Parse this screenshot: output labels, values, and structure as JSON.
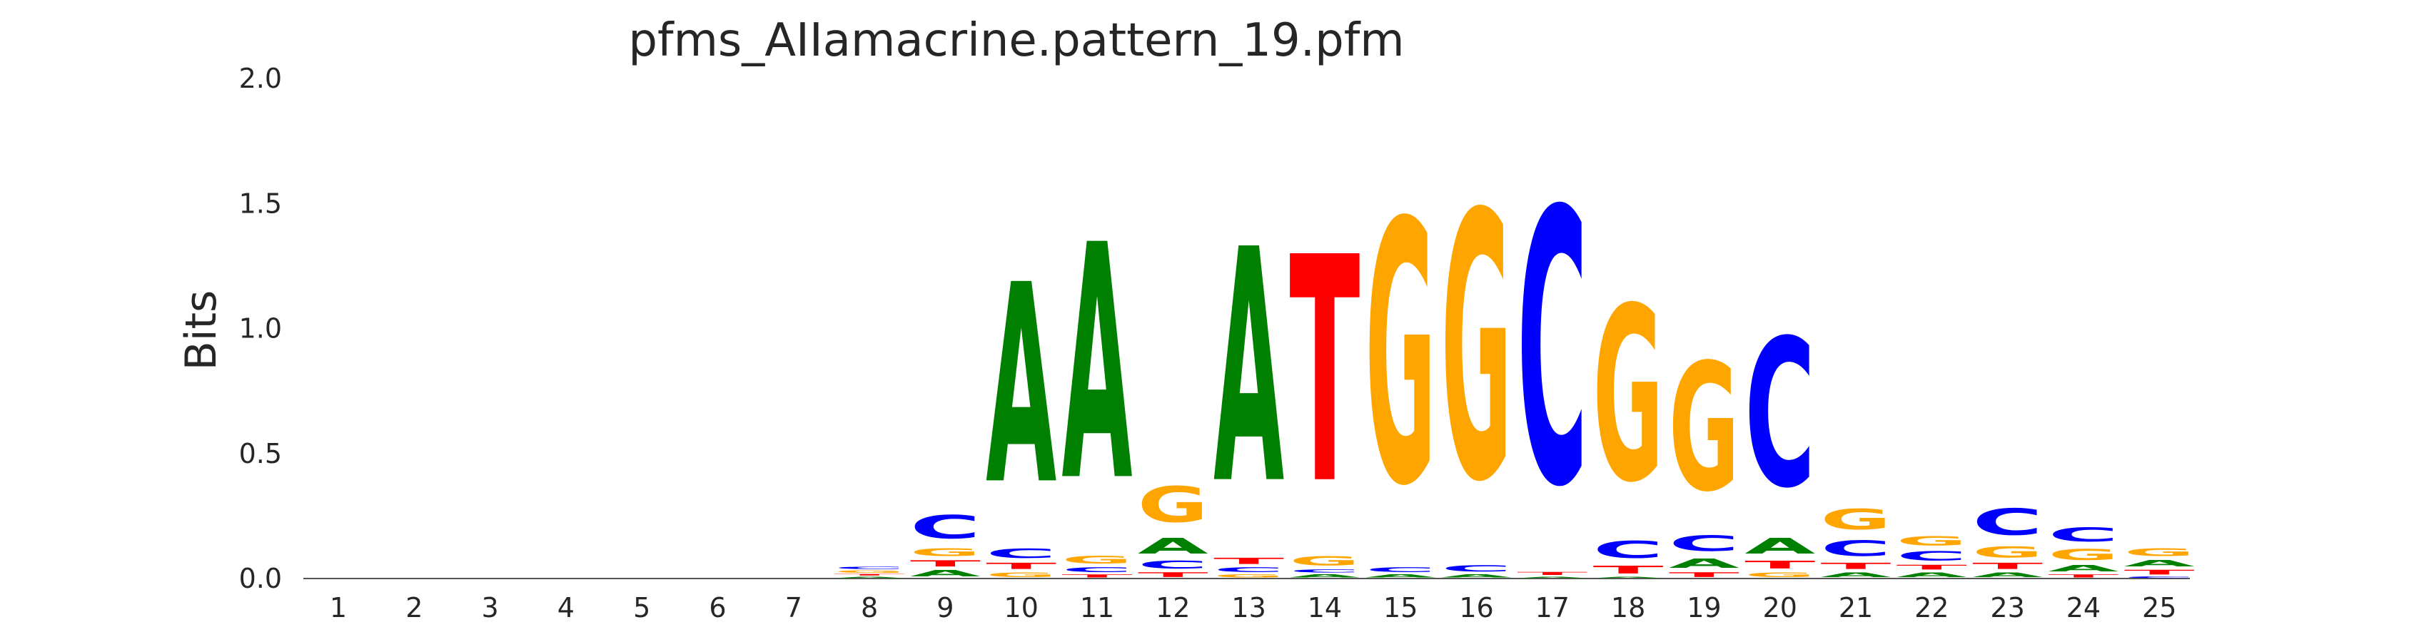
{
  "chart_data": {
    "type": "sequence-logo",
    "title": "pfms_AIIamacrine.pattern_19.pfm",
    "ylabel": "Bits",
    "xlabel": "",
    "ylim": [
      0,
      2.0
    ],
    "yticks": [
      "0.0",
      "0.5",
      "1.0",
      "1.5",
      "2.0"
    ],
    "colors": {
      "A": "#008000",
      "C": "#0000ff",
      "G": "#ffa500",
      "T": "#ff0000"
    },
    "positions": [
      {
        "pos": "1",
        "letters": []
      },
      {
        "pos": "2",
        "letters": []
      },
      {
        "pos": "3",
        "letters": []
      },
      {
        "pos": "4",
        "letters": []
      },
      {
        "pos": "5",
        "letters": []
      },
      {
        "pos": "6",
        "letters": []
      },
      {
        "pos": "7",
        "letters": []
      },
      {
        "pos": "8",
        "letters": [
          {
            "base": "A",
            "height": 0.01
          },
          {
            "base": "T",
            "height": 0.01
          },
          {
            "base": "G",
            "height": 0.015
          },
          {
            "base": "C",
            "height": 0.015
          }
        ]
      },
      {
        "pos": "9",
        "letters": [
          {
            "base": "A",
            "height": 0.04
          },
          {
            "base": "T",
            "height": 0.04
          },
          {
            "base": "G",
            "height": 0.05
          },
          {
            "base": "C",
            "height": 0.15
          }
        ]
      },
      {
        "pos": "10",
        "letters": [
          {
            "base": "G",
            "height": 0.03
          },
          {
            "base": "T",
            "height": 0.04
          },
          {
            "base": "C",
            "height": 0.06
          },
          {
            "base": "A",
            "height": 1.28
          }
        ]
      },
      {
        "pos": "11",
        "letters": [
          {
            "base": "T",
            "height": 0.02
          },
          {
            "base": "C",
            "height": 0.03
          },
          {
            "base": "G",
            "height": 0.05
          },
          {
            "base": "A",
            "height": 1.51
          }
        ]
      },
      {
        "pos": "12",
        "letters": [
          {
            "base": "T",
            "height": 0.03
          },
          {
            "base": "C",
            "height": 0.05
          },
          {
            "base": "A",
            "height": 0.1
          },
          {
            "base": "G",
            "height": 0.23
          }
        ]
      },
      {
        "pos": "13",
        "letters": [
          {
            "base": "G",
            "height": 0.02
          },
          {
            "base": "C",
            "height": 0.03
          },
          {
            "base": "T",
            "height": 0.04
          },
          {
            "base": "A",
            "height": 1.5
          }
        ]
      },
      {
        "pos": "14",
        "letters": [
          {
            "base": "A",
            "height": 0.02
          },
          {
            "base": "C",
            "height": 0.02
          },
          {
            "base": "G",
            "height": 0.06
          },
          {
            "base": "T",
            "height": 1.45
          }
        ]
      },
      {
        "pos": "15",
        "letters": [
          {
            "base": "A",
            "height": 0.02
          },
          {
            "base": "C",
            "height": 0.03
          },
          {
            "base": "G",
            "height": 1.68
          }
        ]
      },
      {
        "pos": "16",
        "letters": [
          {
            "base": "A",
            "height": 0.02
          },
          {
            "base": "C",
            "height": 0.04
          },
          {
            "base": "G",
            "height": 1.71
          }
        ]
      },
      {
        "pos": "17",
        "letters": [
          {
            "base": "A",
            "height": 0.01
          },
          {
            "base": "T",
            "height": 0.02
          },
          {
            "base": "C",
            "height": 1.76
          }
        ]
      },
      {
        "pos": "18",
        "letters": [
          {
            "base": "A",
            "height": 0.01
          },
          {
            "base": "T",
            "height": 0.05
          },
          {
            "base": "C",
            "height": 0.11
          },
          {
            "base": "G",
            "height": 1.12
          }
        ]
      },
      {
        "pos": "19",
        "letters": [
          {
            "base": "T",
            "height": 0.03
          },
          {
            "base": "A",
            "height": 0.06
          },
          {
            "base": "C",
            "height": 0.1
          },
          {
            "base": "G",
            "height": 0.82
          }
        ]
      },
      {
        "pos": "20",
        "letters": [
          {
            "base": "G",
            "height": 0.03
          },
          {
            "base": "T",
            "height": 0.05
          },
          {
            "base": "A",
            "height": 0.1
          },
          {
            "base": "C",
            "height": 0.95
          }
        ]
      },
      {
        "pos": "21",
        "letters": [
          {
            "base": "A",
            "height": 0.03
          },
          {
            "base": "T",
            "height": 0.04
          },
          {
            "base": "C",
            "height": 0.1
          },
          {
            "base": "G",
            "height": 0.13
          }
        ]
      },
      {
        "pos": "22",
        "letters": [
          {
            "base": "A",
            "height": 0.03
          },
          {
            "base": "T",
            "height": 0.03
          },
          {
            "base": "C",
            "height": 0.06
          },
          {
            "base": "G",
            "height": 0.06
          }
        ]
      },
      {
        "pos": "23",
        "letters": [
          {
            "base": "A",
            "height": 0.03
          },
          {
            "base": "T",
            "height": 0.04
          },
          {
            "base": "G",
            "height": 0.07
          },
          {
            "base": "C",
            "height": 0.17
          }
        ]
      },
      {
        "pos": "24",
        "letters": [
          {
            "base": "T",
            "height": 0.02
          },
          {
            "base": "A",
            "height": 0.04
          },
          {
            "base": "G",
            "height": 0.07
          },
          {
            "base": "C",
            "height": 0.09
          }
        ]
      },
      {
        "pos": "25",
        "letters": [
          {
            "base": "C",
            "height": 0.01
          },
          {
            "base": "T",
            "height": 0.03
          },
          {
            "base": "A",
            "height": 0.04
          },
          {
            "base": "G",
            "height": 0.05
          }
        ]
      }
    ]
  }
}
